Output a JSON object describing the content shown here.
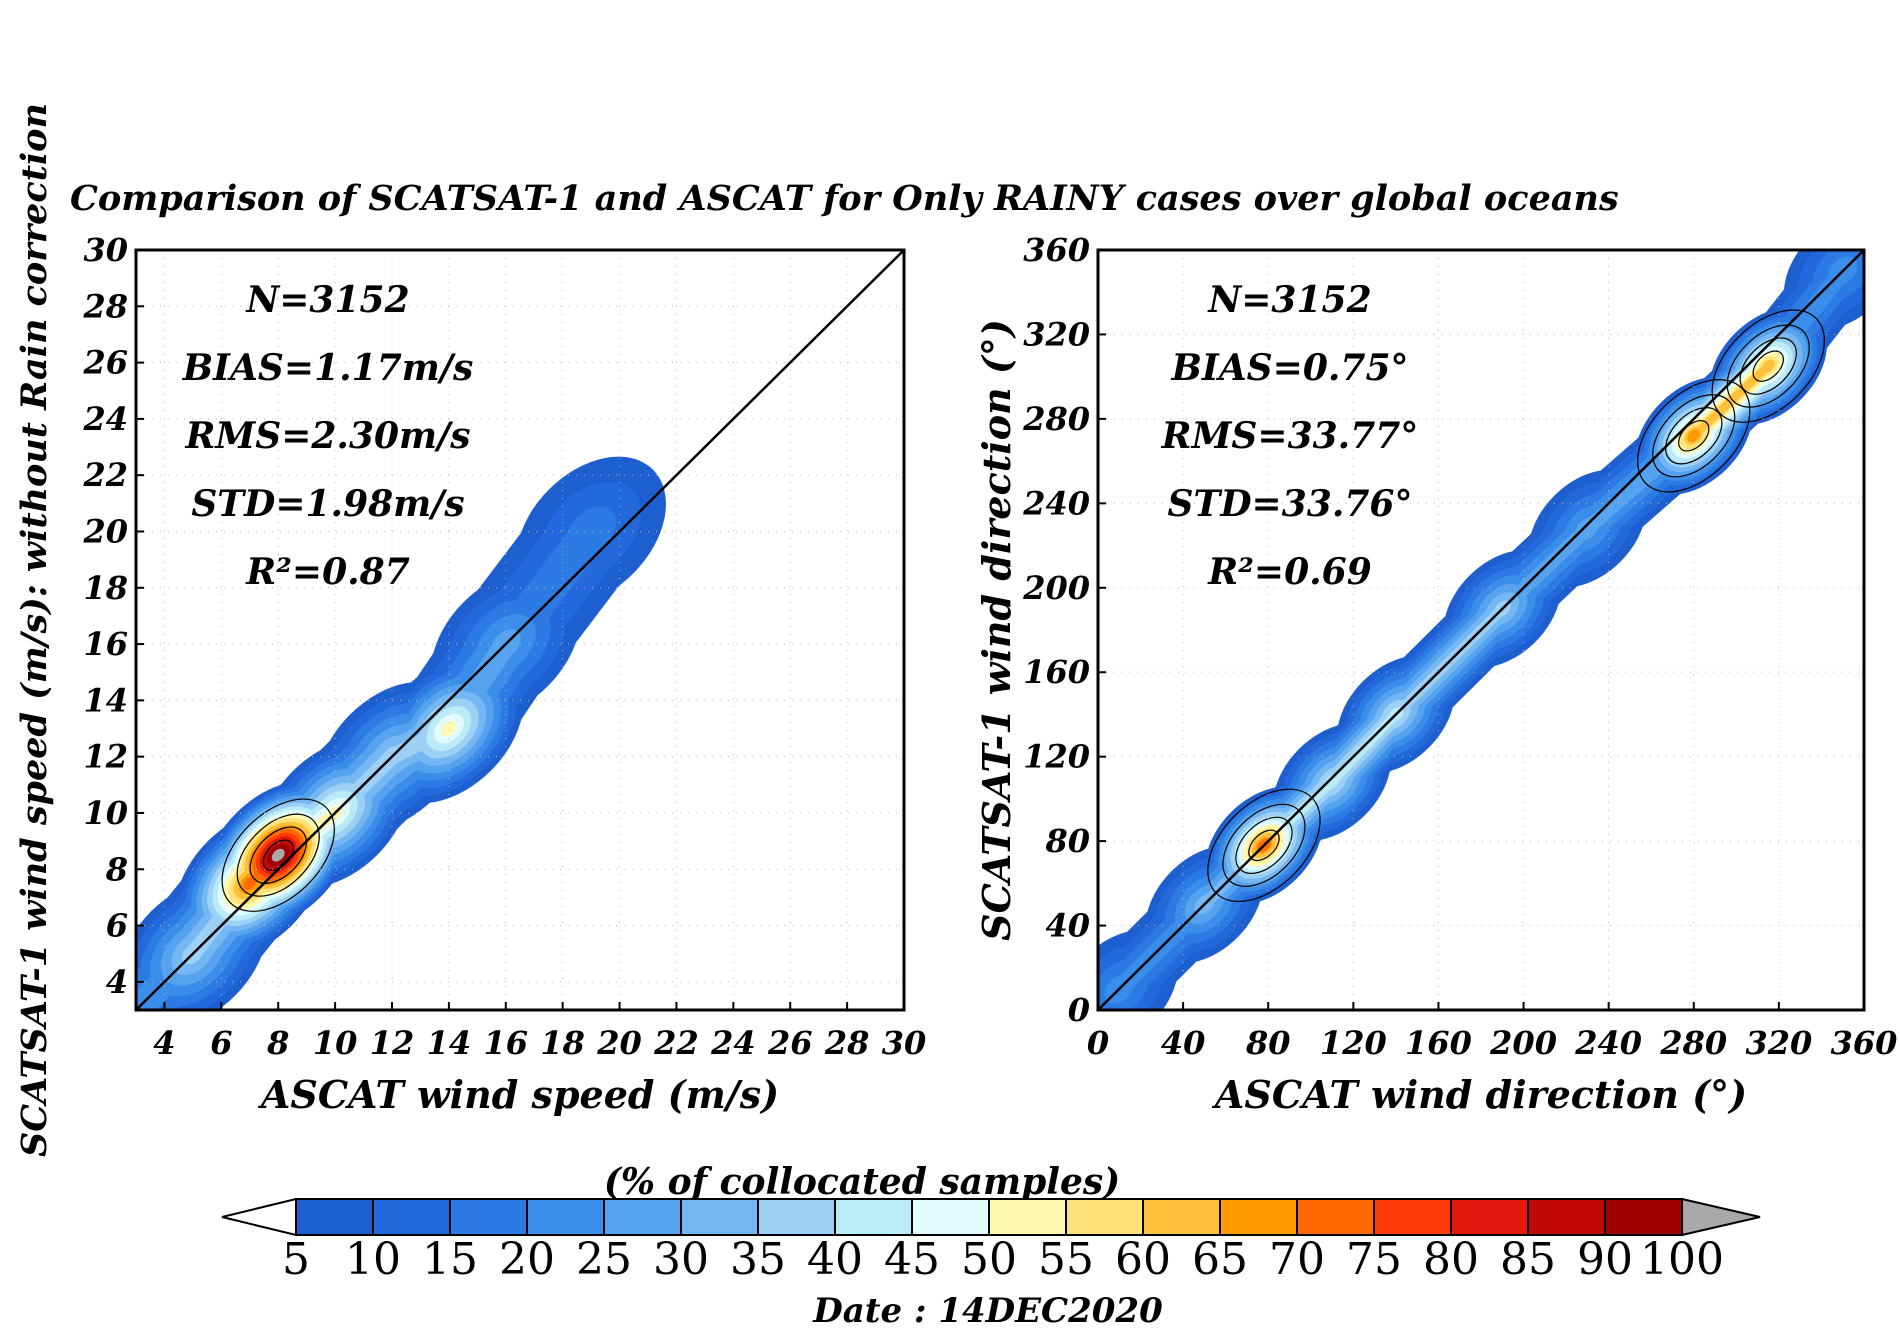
{
  "figure": {
    "title": "Comparison of SCATSAT-1 and ASCAT for Only RAINY cases over global oceans",
    "left_ylabel": "SCATSAT-1 wind speed (m/s): without Rain correction",
    "date": "Date : 14DEC2020",
    "colors": {
      "line": "#000000",
      "background": "#ffffff"
    }
  },
  "chart_data": [
    {
      "type": "heatmap",
      "xlabel": "ASCAT wind speed (m/s)",
      "ylabel": "SCATSAT-1 wind speed (m/s): without Rain correction",
      "xlim": [
        3,
        30
      ],
      "ylim": [
        3,
        30
      ],
      "xticks": [
        4,
        6,
        8,
        10,
        12,
        14,
        16,
        18,
        20,
        22,
        24,
        26,
        28,
        30
      ],
      "yticks": [
        4,
        6,
        8,
        10,
        12,
        14,
        16,
        18,
        20,
        22,
        24,
        26,
        28,
        30
      ],
      "one_to_one_line": true,
      "grid": "dotted",
      "stats": [
        "N=3152",
        "BIAS=1.17m/s",
        "RMS=2.30m/s",
        "STD=1.98m/s",
        "R²=0.87"
      ],
      "density_peak": {
        "x": 8,
        "y": 8.5,
        "value": 100
      },
      "density_ridge": [
        [
          3,
          3,
          20
        ],
        [
          5,
          5,
          35
        ],
        [
          7,
          7.5,
          70
        ],
        [
          8,
          8.5,
          100
        ],
        [
          10,
          10,
          50
        ],
        [
          12,
          12,
          35
        ],
        [
          14,
          13,
          50
        ],
        [
          16,
          16,
          25
        ],
        [
          19,
          20,
          15
        ]
      ]
    },
    {
      "type": "heatmap",
      "xlabel": "ASCAT wind direction (°)",
      "ylabel": "SCATSAT-1 wind direction (°)",
      "xlim": [
        0,
        360
      ],
      "ylim": [
        0,
        360
      ],
      "xticks": [
        0,
        40,
        80,
        120,
        160,
        200,
        240,
        280,
        320,
        360
      ],
      "yticks": [
        0,
        40,
        80,
        120,
        160,
        200,
        240,
        280,
        320,
        360
      ],
      "one_to_one_line": true,
      "grid": "dotted",
      "stats": [
        "N=3152",
        "BIAS=0.75°",
        "RMS=33.77°",
        "STD=33.76°",
        "R²=0.69"
      ],
      "density_peaks": [
        {
          "x": 78,
          "y": 78,
          "value": 70
        },
        {
          "x": 280,
          "y": 272,
          "value": 65
        },
        {
          "x": 315,
          "y": 305,
          "value": 60
        }
      ],
      "density_ridge": [
        [
          10,
          10,
          20
        ],
        [
          50,
          50,
          30
        ],
        [
          78,
          78,
          70
        ],
        [
          110,
          108,
          40
        ],
        [
          140,
          140,
          40
        ],
        [
          190,
          190,
          35
        ],
        [
          230,
          228,
          25
        ],
        [
          280,
          272,
          65
        ],
        [
          315,
          305,
          60
        ],
        [
          350,
          350,
          20
        ]
      ]
    }
  ],
  "colorbar": {
    "title": "(% of collocated samples)",
    "labels": [
      "5",
      "10",
      "15",
      "20",
      "25",
      "30",
      "35",
      "40",
      "45",
      "50",
      "55",
      "60",
      "65",
      "70",
      "75",
      "80",
      "85",
      "90",
      "100"
    ],
    "colors": [
      "#1e5fcf",
      "#2369dc",
      "#2c7be5",
      "#3a8eea",
      "#55a3ee",
      "#74b7f2",
      "#9dd0f5",
      "#b9ecf7",
      "#e2fbff",
      "#fff8b0",
      "#ffe27a",
      "#ffc13c",
      "#ff9a00",
      "#ff6a00",
      "#ff3b0a",
      "#e0180e",
      "#c00808",
      "#a00000"
    ],
    "below_color": "#ffffff",
    "above_color": "#a9a9a9"
  }
}
